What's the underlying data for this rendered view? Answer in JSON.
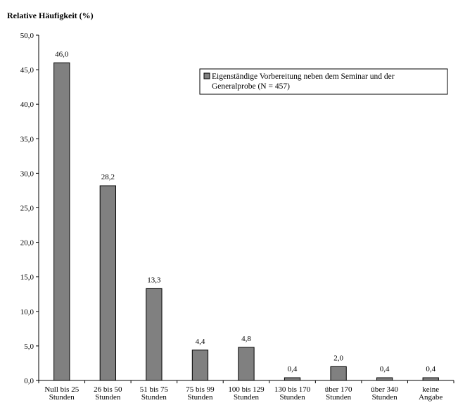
{
  "chart_data": {
    "type": "bar",
    "ylabel": "Relative Häufigkeit (%)",
    "xlabel": "",
    "ylim": [
      0,
      50
    ],
    "y_ticks": [
      "0,0",
      "5,0",
      "10,0",
      "15,0",
      "20,0",
      "25,0",
      "30,0",
      "35,0",
      "40,0",
      "45,0",
      "50,0"
    ],
    "categories": [
      [
        "Null bis 25",
        "Stunden"
      ],
      [
        "26 bis 50",
        "Stunden"
      ],
      [
        "51 bis 75",
        "Stunden"
      ],
      [
        "75 bis 99",
        "Stunden"
      ],
      [
        "100 bis 129",
        "Stunden"
      ],
      [
        "130 bis 170",
        "Stunden"
      ],
      [
        "über 170",
        "Stunden"
      ],
      [
        "über 340",
        "Stunden"
      ],
      [
        "keine",
        "Angabe"
      ]
    ],
    "series": [
      {
        "name": [
          "Eigenständige Vorbereitung neben dem Seminar und der",
          "Generalprobe (N = 457)"
        ],
        "values": [
          46.0,
          28.2,
          13.3,
          4.4,
          4.8,
          0.4,
          2.0,
          0.4,
          0.4
        ],
        "value_labels": [
          "46,0",
          "28,2",
          "13,3",
          "4,4",
          "4,8",
          "0,4",
          "2,0",
          "0,4",
          "0,4"
        ]
      }
    ],
    "legend_position": "top-right",
    "grid": false,
    "colors": {
      "bar_fill": "#808080",
      "bar_stroke": "#000000",
      "axis": "#000000",
      "background": "#ffffff"
    }
  }
}
